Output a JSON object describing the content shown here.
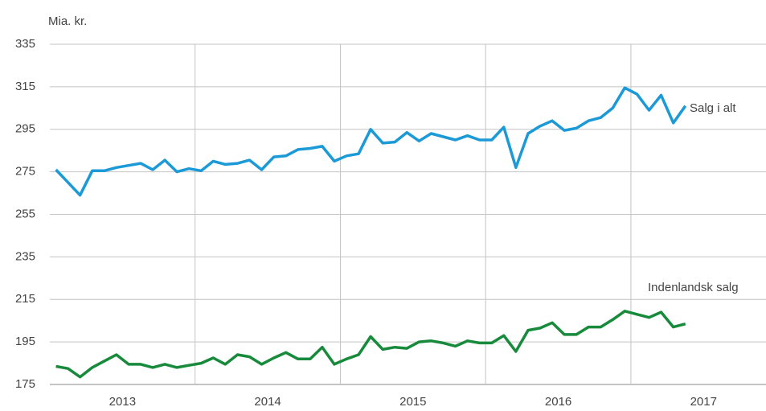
{
  "chart_data": {
    "type": "line",
    "y_label": "Mia. kr.",
    "x": [
      2013.042,
      2013.125,
      2013.208,
      2013.292,
      2013.375,
      2013.458,
      2013.542,
      2013.625,
      2013.708,
      2013.792,
      2013.875,
      2013.958,
      2014.042,
      2014.125,
      2014.208,
      2014.292,
      2014.375,
      2014.458,
      2014.542,
      2014.625,
      2014.708,
      2014.792,
      2014.875,
      2014.958,
      2015.042,
      2015.125,
      2015.208,
      2015.292,
      2015.375,
      2015.458,
      2015.542,
      2015.625,
      2015.708,
      2015.792,
      2015.875,
      2015.958,
      2016.042,
      2016.125,
      2016.208,
      2016.292,
      2016.375,
      2016.458,
      2016.542,
      2016.625,
      2016.708,
      2016.792,
      2016.875,
      2016.958,
      2017.042,
      2017.125,
      2017.208,
      2017.292,
      2017.375
    ],
    "series": [
      {
        "name": "Salg i alt",
        "color": "#1b9ad7",
        "values": [
          276,
          270,
          264,
          275.5,
          275.5,
          277,
          278,
          279,
          276,
          280.5,
          275,
          276.5,
          275.5,
          280,
          278.5,
          279,
          280.5,
          276,
          282,
          282.5,
          285.5,
          286,
          287,
          280,
          282.5,
          283.5,
          295,
          288.5,
          289,
          293.5,
          289.5,
          293,
          291.5,
          290,
          292,
          290,
          290,
          296,
          277,
          293,
          296.5,
          299,
          294.5,
          295.5,
          299,
          300.5,
          305,
          314.5,
          311.5,
          304,
          311,
          298,
          306
        ]
      },
      {
        "name": "Indenlandsk salg",
        "color": "#178a3b",
        "values": [
          183.5,
          182.5,
          178.5,
          183,
          186,
          189,
          184.5,
          184.5,
          183,
          184.5,
          183,
          184,
          185,
          187.5,
          184.5,
          189,
          188,
          184.5,
          187.5,
          190,
          187,
          187,
          192.5,
          184.5,
          187,
          189,
          197.5,
          191.5,
          192.5,
          192,
          195,
          195.5,
          194.5,
          193,
          195.5,
          194.5,
          194.5,
          198,
          190.5,
          200.5,
          201.5,
          204,
          198.5,
          198.5,
          202,
          202,
          205.5,
          209.5,
          208,
          206.5,
          209,
          202,
          203.5
        ]
      }
    ],
    "xlim": [
      2013,
      2017.93
    ],
    "xticks": [
      {
        "value": 2013.5,
        "label": "2013"
      },
      {
        "value": 2014.5,
        "label": "2014"
      },
      {
        "value": 2015.5,
        "label": "2015"
      },
      {
        "value": 2016.5,
        "label": "2016"
      },
      {
        "value": 2017.5,
        "label": "2017"
      }
    ],
    "xgrid": [
      2014,
      2015,
      2016,
      2017
    ],
    "ylim": [
      175,
      335
    ],
    "yticks": [
      175,
      195,
      215,
      235,
      255,
      275,
      295,
      315,
      335
    ],
    "grid": true
  }
}
